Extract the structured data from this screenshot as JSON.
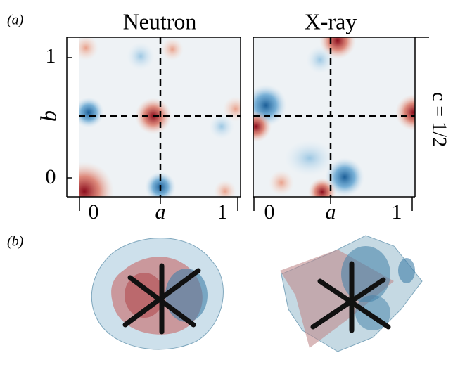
{
  "panel_a": {
    "label": "(a)",
    "titles": [
      "Neutron",
      "X-ray"
    ],
    "y_axis_label": "b",
    "y_tick_labels": [
      "1",
      "0"
    ],
    "x_tick_labels": [
      "0",
      "a",
      "1"
    ],
    "side_label": "c = 1/2"
  },
  "panel_b": {
    "label": "(b)"
  }
}
